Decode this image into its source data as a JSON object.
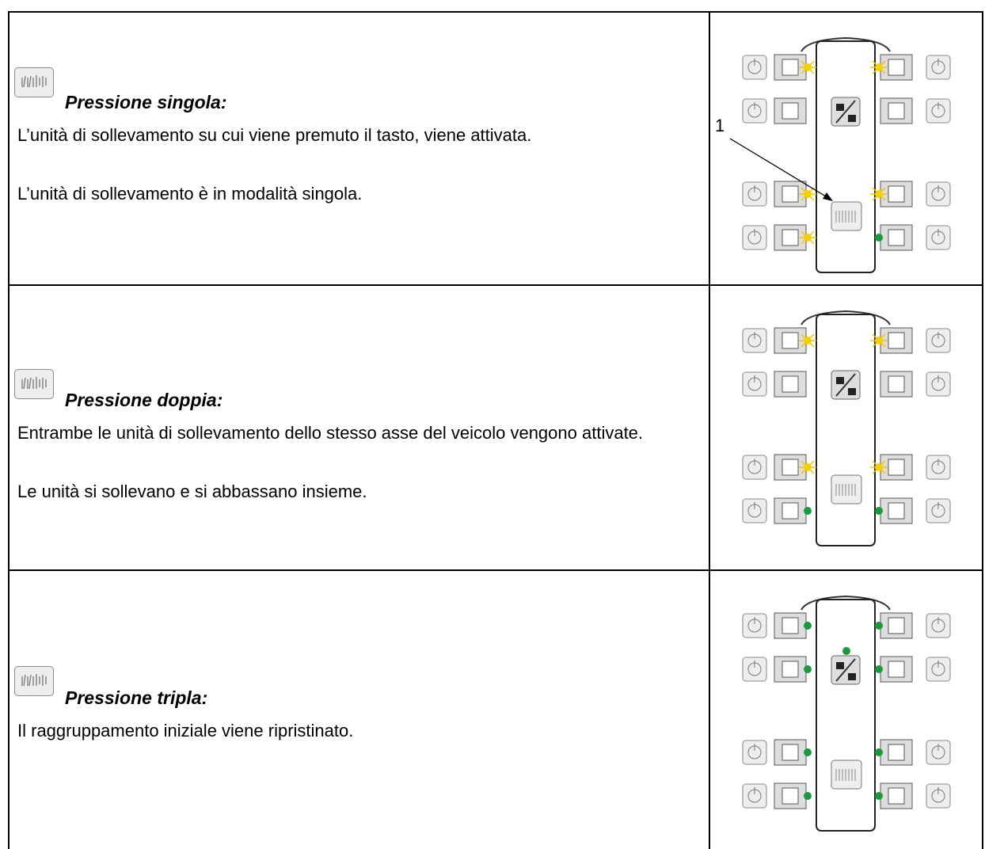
{
  "table": {
    "rows": [
      {
        "title": "Pressione singola:",
        "paragraphs": [
          "L’unità di sollevamento su cui viene premuto il tasto, viene attivata.",
          "L’unità di sollevamento è in modalità singola."
        ],
        "callout": "1"
      },
      {
        "title": "Pressione doppia:",
        "paragraphs": [
          "Entrambe le unità di sollevamento dello stesso asse del veicolo vengono attivate.",
          "Le unità si sollevano e si abbassano insieme."
        ]
      },
      {
        "title": "Pressione tripla:",
        "paragraphs": [
          "Il raggruppamento iniziale viene ripristinato."
        ]
      }
    ]
  }
}
